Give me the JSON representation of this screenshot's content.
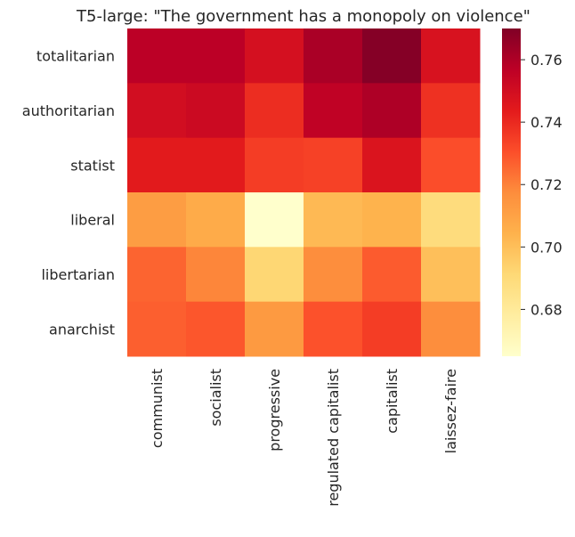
{
  "chart_data": {
    "type": "heatmap",
    "title": "T5-large: \"The government has a monopoly on violence\"",
    "xlabel": "",
    "ylabel": "",
    "x_categories": [
      "communist",
      "socialist",
      "progressive",
      "regulated capitalist",
      "capitalist",
      "laissez-faire"
    ],
    "y_categories": [
      "totalitarian",
      "authoritarian",
      "statist",
      "liberal",
      "libertarian",
      "anarchist"
    ],
    "values": [
      [
        0.757,
        0.757,
        0.749,
        0.761,
        0.769,
        0.748
      ],
      [
        0.75,
        0.752,
        0.739,
        0.756,
        0.76,
        0.738
      ],
      [
        0.744,
        0.744,
        0.735,
        0.734,
        0.747,
        0.731
      ],
      [
        0.712,
        0.707,
        0.665,
        0.702,
        0.704,
        0.689
      ],
      [
        0.726,
        0.719,
        0.692,
        0.717,
        0.728,
        0.7
      ],
      [
        0.727,
        0.729,
        0.713,
        0.73,
        0.735,
        0.717
      ]
    ],
    "colormap": "YlOrRd",
    "color_range": [
      0.665,
      0.77
    ],
    "colorbar_ticks": [
      "0.68",
      "0.70",
      "0.72",
      "0.74",
      "0.76"
    ],
    "colorbar_tick_values": [
      0.68,
      0.7,
      0.72,
      0.74,
      0.76
    ]
  }
}
